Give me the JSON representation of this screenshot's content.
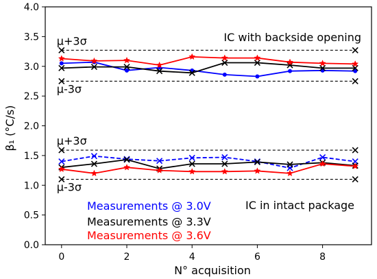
{
  "chart_data": {
    "type": "line",
    "xlabel": "N° acquisition",
    "ylabel": "β₁ (°C/s)",
    "xlim": [
      -0.5,
      9.5
    ],
    "ylim": [
      0.0,
      4.0
    ],
    "xticks": [
      0,
      2,
      4,
      6,
      8
    ],
    "yticks": [
      0.0,
      0.5,
      1.0,
      1.5,
      2.0,
      2.5,
      3.0,
      3.5,
      4.0
    ],
    "xtick_labels": [
      "0",
      "2",
      "4",
      "6",
      "8"
    ],
    "ytick_labels": [
      "0.0",
      "0.5",
      "1.0",
      "1.5",
      "2.0",
      "2.5",
      "3.0",
      "3.5",
      "4.0"
    ],
    "grid": false,
    "legend_position": "lower-left",
    "x": [
      0,
      1,
      2,
      3,
      4,
      5,
      6,
      7,
      8,
      9
    ],
    "groups": [
      {
        "label": "IC with backside opening",
        "upper_bound_label": "μ+3σ",
        "lower_bound_label": "μ-3σ",
        "upper_bound": 3.27,
        "lower_bound": 2.75,
        "series": [
          {
            "color": "#0000ff",
            "marker": "dot",
            "dashed": false,
            "values": [
              3.05,
              3.07,
              2.93,
              2.98,
              2.93,
              2.86,
              2.83,
              2.92,
              2.93,
              2.92
            ]
          },
          {
            "color": "#000000",
            "marker": "x",
            "dashed": false,
            "values": [
              2.97,
              2.99,
              2.99,
              2.92,
              2.89,
              3.06,
              3.06,
              3.02,
              2.97,
              2.97
            ]
          },
          {
            "color": "#ff0000",
            "marker": "star",
            "dashed": false,
            "values": [
              3.13,
              3.09,
              3.1,
              3.02,
              3.16,
              3.14,
              3.14,
              3.07,
              3.05,
              3.04
            ]
          }
        ]
      },
      {
        "label": "IC in intact package",
        "upper_bound_label": "μ+3σ",
        "lower_bound_label": "μ-3σ",
        "upper_bound": 1.59,
        "lower_bound": 1.1,
        "series": [
          {
            "color": "#0000ff",
            "marker": "x",
            "dashed": true,
            "values": [
              1.4,
              1.49,
              1.44,
              1.41,
              1.46,
              1.47,
              1.4,
              1.29,
              1.47,
              1.4
            ]
          },
          {
            "color": "#000000",
            "marker": "x",
            "dashed": false,
            "values": [
              1.3,
              1.36,
              1.43,
              1.28,
              1.36,
              1.36,
              1.39,
              1.35,
              1.38,
              1.33
            ]
          },
          {
            "color": "#ff0000",
            "marker": "star",
            "dashed": false,
            "values": [
              1.27,
              1.2,
              1.3,
              1.25,
              1.23,
              1.23,
              1.24,
              1.2,
              1.36,
              1.32
            ]
          }
        ]
      }
    ],
    "legend": [
      {
        "name": "Measurements @ 3.0V",
        "color": "#0000ff"
      },
      {
        "name": "Measurements @ 3.3V",
        "color": "#000000"
      },
      {
        "name": "Measurements @ 3.6V",
        "color": "#ff0000"
      }
    ]
  }
}
